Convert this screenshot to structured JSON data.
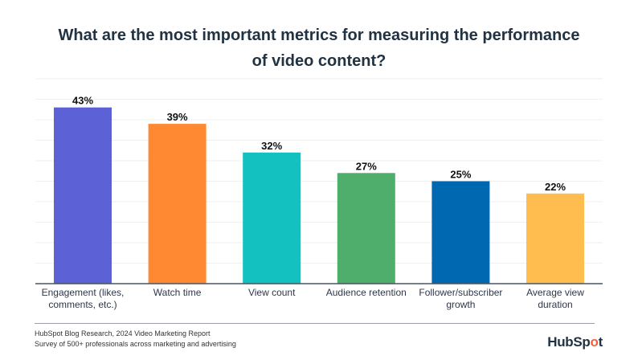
{
  "chart_data": {
    "type": "bar",
    "title_line1": "What are the most important metrics for measuring the performance",
    "title_line2": "of video content?",
    "categories": [
      [
        "Engagement (likes,",
        "comments, etc.)"
      ],
      [
        "Watch time"
      ],
      [
        "View count"
      ],
      [
        "Audience retention"
      ],
      [
        "Follower/subscriber",
        "growth"
      ],
      [
        "Average view",
        "duration"
      ]
    ],
    "values": [
      43,
      39,
      32,
      27,
      25,
      22
    ],
    "value_labels": [
      "43%",
      "39%",
      "32%",
      "27%",
      "25%",
      "22%"
    ],
    "colors": [
      "#5c61d6",
      "#ff8933",
      "#13c1c0",
      "#4fae6c",
      "#0068b1",
      "#ffbd4f"
    ],
    "ylim": [
      0,
      50
    ],
    "grid_step": 5,
    "grid": true,
    "xlabel": "",
    "ylabel": ""
  },
  "footer": {
    "source_line1": "HubSpot Blog Research, 2024 Video Marketing Report",
    "source_line2": "Survey of 500+ professionals across marketing and advertising",
    "logo_text": "HubSpot"
  }
}
